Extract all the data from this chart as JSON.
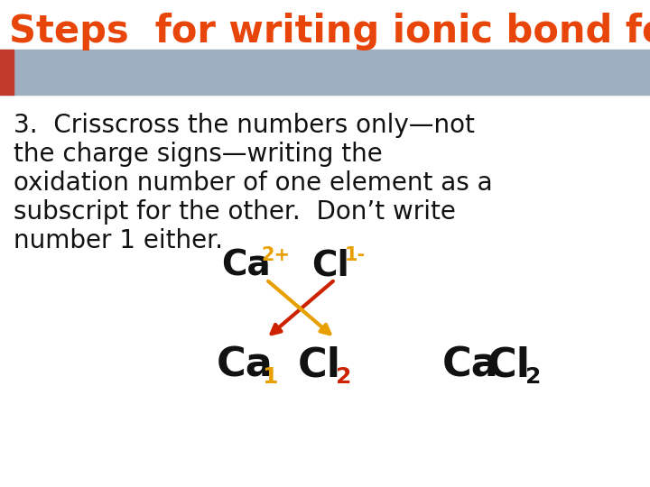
{
  "title": "Steps  for writing ionic bond formulas",
  "title_color": "#E8450A",
  "title_fontsize": 30,
  "title_bg_color": "#9DAFC0",
  "title_rect_color": "#C0392B",
  "body_text_line1": "3.  Crisscross the numbers only—not",
  "body_text_line2": "the charge signs—writing the",
  "body_text_line3": "oxidation number of one element as a",
  "body_text_line4": "subscript for the other.  Don’t write",
  "body_text_line5": "number 1 either.",
  "body_fontsize": 20,
  "body_color": "#111111",
  "bg_color": "#FFFFFF",
  "arrow_orange_color": "#E8A000",
  "arrow_red_color": "#CC2200",
  "charge_color": "#E8A000",
  "sub1_color": "#E8A000",
  "sub2_color": "#CC2200",
  "separator_color": "#9DAFC0"
}
